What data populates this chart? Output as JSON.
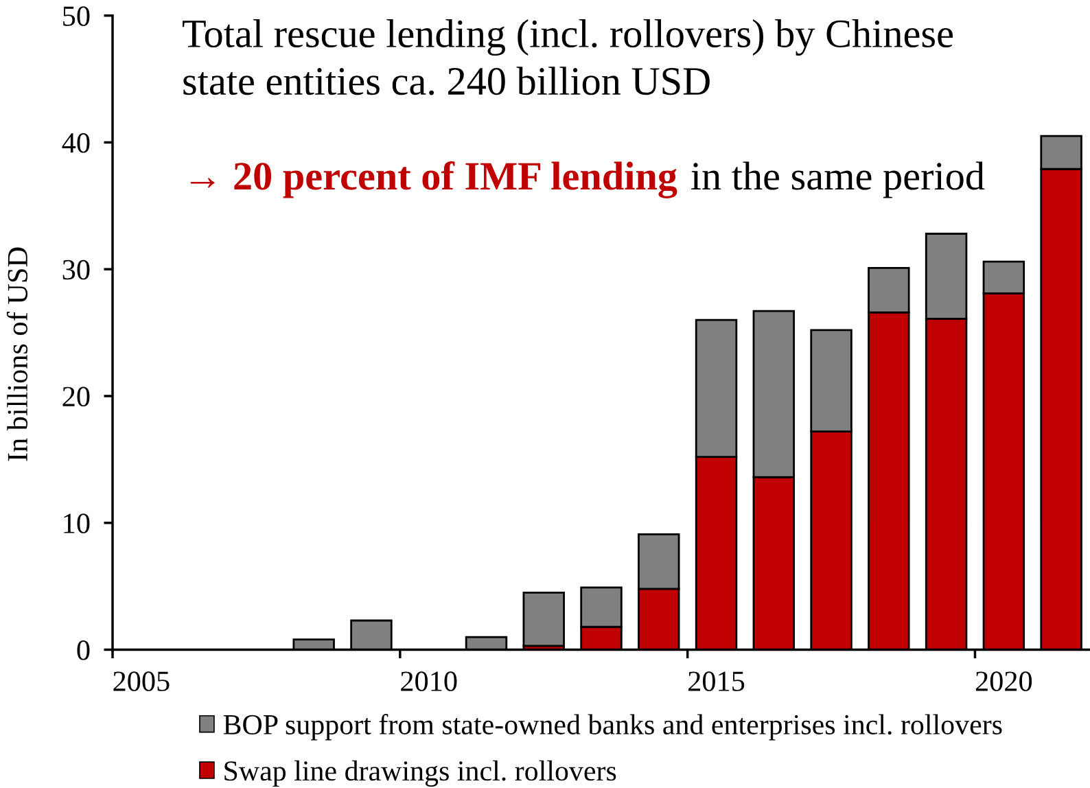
{
  "chart_data": {
    "type": "bar",
    "stacked": true,
    "title": "Total rescue lending (incl. rollovers) by Chinese\nstate entities ca. 240 billion USD",
    "annotations": [
      "→ 20 percent of IMF lending",
      "in the same period"
    ],
    "ylabel": "In billions of USD",
    "categories": [
      "2005",
      null,
      null,
      null,
      null,
      "2010",
      null,
      null,
      null,
      null,
      "2015",
      null,
      null,
      null,
      null,
      "2020",
      null
    ],
    "series": [
      {
        "name": "Swap line drawings incl. rollovers",
        "color": "#c00000",
        "values": [
          null,
          null,
          null,
          null,
          null,
          null,
          null,
          0.3,
          1.8,
          4.8,
          15.2,
          13.6,
          17.2,
          26.6,
          26.1,
          28.1,
          37.9
        ]
      },
      {
        "name": "BOP support from state-owned banks and enterprises incl. rollovers",
        "color": "#808080",
        "values": [
          null,
          null,
          null,
          0.8,
          2.3,
          null,
          1.0,
          4.2,
          3.1,
          4.3,
          10.8,
          13.1,
          8.0,
          3.5,
          6.7,
          2.5,
          2.6
        ]
      }
    ],
    "ylim": [
      0,
      50
    ],
    "yticks": [
      0,
      10,
      20,
      30,
      40,
      50
    ],
    "legend": "bottom"
  }
}
